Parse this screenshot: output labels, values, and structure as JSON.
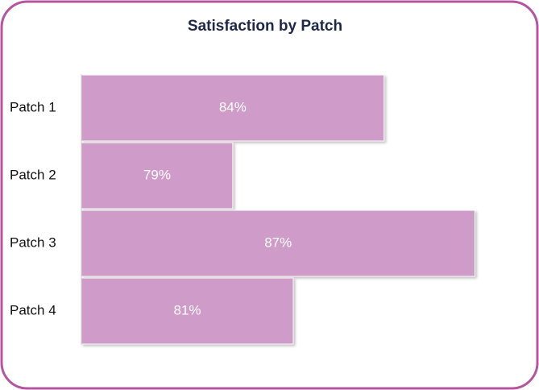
{
  "chart_data": {
    "type": "bar",
    "orientation": "horizontal",
    "title": "Satisfaction by Patch",
    "categories": [
      "Patch 1",
      "Patch 2",
      "Patch 3",
      "Patch 4"
    ],
    "values": [
      84,
      79,
      87,
      81
    ],
    "value_labels": [
      "84%",
      "79%",
      "87%",
      "81%"
    ],
    "color": "#cf9bc9",
    "xlim": [
      74,
      88
    ]
  }
}
